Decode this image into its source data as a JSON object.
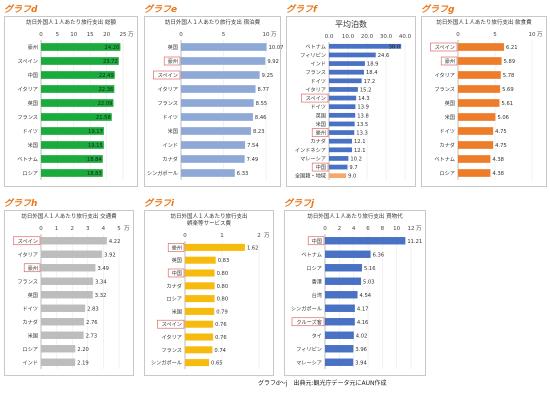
{
  "footer": "グラフd～j　出典元:観光庁データ元にAUN作成",
  "charts": [
    {
      "id": "d",
      "panel_label": "グラフd",
      "title_lines": [
        "訪日外国人１人あたり旅行支出 総額"
      ],
      "unit": "万",
      "color": "#1aab3c",
      "xmax": 25,
      "ticks": [
        0,
        5,
        10,
        15,
        20,
        25
      ],
      "categories": [
        "豪州",
        "スペイン",
        "中国",
        "イタリア",
        "英国",
        "フランス",
        "ドイツ",
        "米国",
        "ベトナム",
        "ロシア"
      ],
      "values": [
        24.2,
        23.72,
        22.49,
        22.36,
        22.09,
        21.58,
        19.17,
        19.15,
        18.84,
        18.83
      ],
      "value_labels": [
        "24.20",
        "23.72",
        "22.49",
        "22.36",
        "22.09",
        "21.58",
        "19.17",
        "19.15",
        "18.84",
        "18.83"
      ],
      "boxed": [],
      "inside_labels": true
    },
    {
      "id": "e",
      "panel_label": "グラフe",
      "title_lines": [
        "訪日外国人１人あたり旅行支出 宿泊費"
      ],
      "unit": "万",
      "color": "#8fa9d6",
      "xmax": 10,
      "ticks": [
        0,
        5,
        10
      ],
      "categories": [
        "英国",
        "豪州",
        "スペイン",
        "イタリア",
        "フランス",
        "ドイツ",
        "米国",
        "インド",
        "カナダ",
        "シンガポール"
      ],
      "values": [
        10.07,
        9.92,
        9.25,
        8.77,
        8.55,
        8.46,
        8.23,
        7.54,
        7.49,
        6.33
      ],
      "value_labels": [
        "10.07",
        "9.92",
        "9.25",
        "8.77",
        "8.55",
        "8.46",
        "8.23",
        "7.54",
        "7.49",
        "6.33"
      ],
      "boxed": [
        "豪州",
        "スペイン"
      ],
      "inside_labels": false
    },
    {
      "id": "f",
      "panel_label": "グラフf",
      "title_lines": [
        "平均泊数"
      ],
      "big_title": true,
      "unit": "",
      "color": "#4a72c4",
      "xmax": 40,
      "ticks": [
        0.0,
        10.0,
        20.0,
        30.0,
        40.0
      ],
      "tick_labels": [
        "0.0",
        "10.0",
        "20.0",
        "30.0",
        "40.0"
      ],
      "categories": [
        "ベトナム",
        "フィリピン",
        "インド",
        "フランス",
        "ドイツ",
        "イタリア",
        "スペイン",
        "ドイツ",
        "英国",
        "米国",
        "豪州",
        "カナダ",
        "インドネシア",
        "マレーシア",
        "中国",
        "全国籍・地域"
      ],
      "values": [
        38.0,
        24.6,
        18.9,
        18.4,
        17.2,
        15.2,
        14.3,
        13.9,
        13.8,
        13.5,
        13.3,
        12.1,
        12.1,
        10.2,
        9.7,
        9.0
      ],
      "value_labels": [
        "38.0",
        "24.6",
        "18.9",
        "18.4",
        "17.2",
        "15.2",
        "14.3",
        "13.9",
        "13.8",
        "13.5",
        "13.3",
        "12.1",
        "12.1",
        "10.2",
        "9.7",
        "9.0"
      ],
      "boxed": [
        "スペイン",
        "豪州",
        "中国"
      ],
      "highlight_last": "#f4a96a",
      "inside_labels": false
    },
    {
      "id": "g",
      "panel_label": "グラフg",
      "title_lines": [
        "訪日外国人１人あたり旅行支出 飲食費"
      ],
      "unit": "万",
      "color": "#ee7d2a",
      "xmax": 10,
      "ticks": [
        0,
        5,
        10
      ],
      "categories": [
        "スペイン",
        "豪州",
        "イタリア",
        "フランス",
        "英国",
        "米国",
        "ドイツ",
        "カナダ",
        "ベトナム",
        "ロシア"
      ],
      "values": [
        6.21,
        5.89,
        5.78,
        5.69,
        5.61,
        5.06,
        4.75,
        4.75,
        4.38,
        4.38
      ],
      "value_labels": [
        "6.21",
        "5.89",
        "5.78",
        "5.69",
        "5.61",
        "5.06",
        "4.75",
        "4.75",
        "4.38",
        "4.38"
      ],
      "boxed": [
        "スペイン",
        "豪州"
      ],
      "inside_labels": false
    },
    {
      "id": "h",
      "panel_label": "グラフh",
      "title_lines": [
        "訪日外国人１人あたり旅行支出 交通費"
      ],
      "unit": "万",
      "color": "#bdbdbd",
      "xmax": 5,
      "ticks": [
        0,
        1,
        2,
        3,
        4,
        5
      ],
      "categories": [
        "スペイン",
        "イタリア",
        "豪州",
        "フランス",
        "英国",
        "ドイツ",
        "カナダ",
        "米国",
        "ロシア",
        "インド"
      ],
      "values": [
        4.22,
        3.92,
        3.49,
        3.34,
        3.32,
        2.83,
        2.76,
        2.73,
        2.2,
        2.19
      ],
      "value_labels": [
        "4.22",
        "3.92",
        "3.49",
        "3.34",
        "3.32",
        "2.83",
        "2.76",
        "2.73",
        "2.20",
        "2.19"
      ],
      "boxed": [
        "スペイン",
        "豪州"
      ],
      "inside_labels": false
    },
    {
      "id": "i",
      "panel_label": "グラフi",
      "title_lines": [
        "訪日外国人１人あたり旅行支出",
        "娯楽等サービス費"
      ],
      "unit": "万",
      "color": "#f7bb10",
      "xmax": 2,
      "ticks": [
        0,
        1,
        2
      ],
      "categories": [
        "豪州",
        "英国",
        "中国",
        "カナダ",
        "ロシア",
        "米国",
        "スペイン",
        "イタリア",
        "フランス",
        "シンガポール"
      ],
      "values": [
        1.62,
        0.83,
        0.8,
        0.8,
        0.8,
        0.79,
        0.76,
        0.76,
        0.74,
        0.65
      ],
      "value_labels": [
        "1.62",
        "0.83",
        "0.80",
        "0.80",
        "0.80",
        "0.79",
        "0.76",
        "0.76",
        "0.74",
        "0.65"
      ],
      "boxed": [
        "豪州",
        "中国",
        "スペイン"
      ],
      "inside_labels": false
    },
    {
      "id": "j",
      "panel_label": "グラフj",
      "title_lines": [
        "訪日外国人１人あたり旅行支出 買物代"
      ],
      "unit": "万",
      "color": "#4a72c4",
      "xmax": 12,
      "ticks": [
        0,
        2,
        4,
        6,
        8,
        10,
        12
      ],
      "categories": [
        "中国",
        "ベトナム",
        "ロシア",
        "香港",
        "台湾",
        "シンガポール",
        "クルーズ客",
        "タイ",
        "フィリピン",
        "マレーシア"
      ],
      "values": [
        11.21,
        6.36,
        5.16,
        5.03,
        4.54,
        4.17,
        4.16,
        4.02,
        3.96,
        3.94
      ],
      "value_labels": [
        "11.21",
        "6.36",
        "5.16",
        "5.03",
        "4.54",
        "4.17",
        "4.16",
        "4.02",
        "3.96",
        "3.94"
      ],
      "boxed": [
        "中国",
        "クルーズ客"
      ],
      "inside_labels": false
    }
  ],
  "chart_data": [
    {
      "type": "bar",
      "title": "訪日外国人１人あたり旅行支出 総額",
      "categories": [
        "豪州",
        "スペイン",
        "中国",
        "イタリア",
        "英国",
        "フランス",
        "ドイツ",
        "米国",
        "ベトナム",
        "ロシア"
      ],
      "values": [
        24.2,
        23.72,
        22.49,
        22.36,
        22.09,
        21.58,
        19.17,
        19.15,
        18.84,
        18.83
      ],
      "xlim": [
        0,
        25
      ],
      "unit": "万"
    },
    {
      "type": "bar",
      "title": "訪日外国人１人あたり旅行支出 宿泊費",
      "categories": [
        "英国",
        "豪州",
        "スペイン",
        "イタリア",
        "フランス",
        "ドイツ",
        "米国",
        "インド",
        "カナダ",
        "シンガポール"
      ],
      "values": [
        10.07,
        9.92,
        9.25,
        8.77,
        8.55,
        8.46,
        8.23,
        7.54,
        7.49,
        6.33
      ],
      "xlim": [
        0,
        10
      ],
      "unit": "万"
    },
    {
      "type": "bar",
      "title": "平均泊数",
      "categories": [
        "ベトナム",
        "フィリピン",
        "インド",
        "フランス",
        "ドイツ",
        "イタリア",
        "スペイン",
        "ドイツ",
        "英国",
        "米国",
        "豪州",
        "カナダ",
        "インドネシア",
        "マレーシア",
        "中国",
        "全国籍・地域"
      ],
      "values": [
        38.0,
        24.6,
        18.9,
        18.4,
        17.2,
        15.2,
        14.3,
        13.9,
        13.8,
        13.5,
        13.3,
        12.1,
        12.1,
        10.2,
        9.7,
        9.0
      ],
      "xlim": [
        0,
        40
      ]
    },
    {
      "type": "bar",
      "title": "訪日外国人１人あたり旅行支出 飲食費",
      "categories": [
        "スペイン",
        "豪州",
        "イタリア",
        "フランス",
        "英国",
        "米国",
        "ドイツ",
        "カナダ",
        "ベトナム",
        "ロシア"
      ],
      "values": [
        6.21,
        5.89,
        5.78,
        5.69,
        5.61,
        5.06,
        4.75,
        4.75,
        4.38,
        4.38
      ],
      "xlim": [
        0,
        10
      ],
      "unit": "万"
    },
    {
      "type": "bar",
      "title": "訪日外国人１人あたり旅行支出 交通費",
      "categories": [
        "スペイン",
        "イタリア",
        "豪州",
        "フランス",
        "英国",
        "ドイツ",
        "カナダ",
        "米国",
        "ロシア",
        "インド"
      ],
      "values": [
        4.22,
        3.92,
        3.49,
        3.34,
        3.32,
        2.83,
        2.76,
        2.73,
        2.2,
        2.19
      ],
      "xlim": [
        0,
        5
      ],
      "unit": "万"
    },
    {
      "type": "bar",
      "title": "訪日外国人１人あたり旅行支出 娯楽等サービス費",
      "categories": [
        "豪州",
        "英国",
        "中国",
        "カナダ",
        "ロシア",
        "米国",
        "スペイン",
        "イタリア",
        "フランス",
        "シンガポール"
      ],
      "values": [
        1.62,
        0.83,
        0.8,
        0.8,
        0.8,
        0.79,
        0.76,
        0.76,
        0.74,
        0.65
      ],
      "xlim": [
        0,
        2
      ],
      "unit": "万"
    },
    {
      "type": "bar",
      "title": "訪日外国人１人あたり旅行支出 買物代",
      "categories": [
        "中国",
        "ベトナム",
        "ロシア",
        "香港",
        "台湾",
        "シンガポール",
        "クルーズ客",
        "タイ",
        "フィリピン",
        "マレーシア"
      ],
      "values": [
        11.21,
        6.36,
        5.16,
        5.03,
        4.54,
        4.17,
        4.16,
        4.02,
        3.96,
        3.94
      ],
      "xlim": [
        0,
        12
      ],
      "unit": "万"
    }
  ]
}
